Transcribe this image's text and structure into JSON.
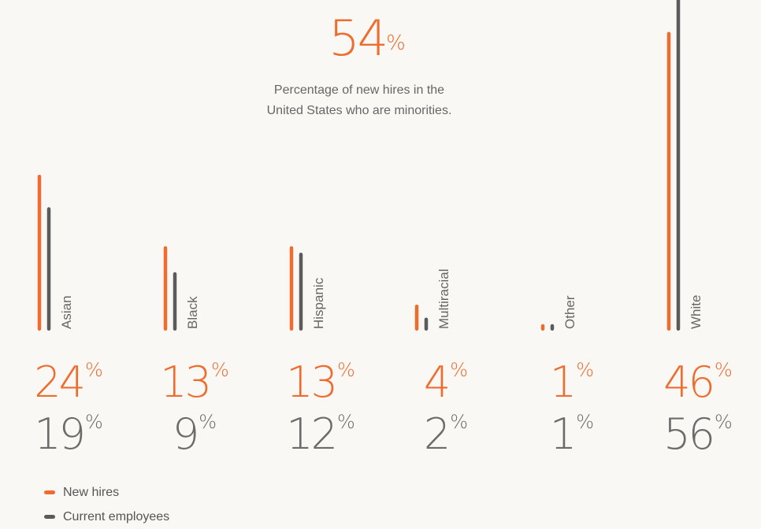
{
  "headline": {
    "value": "54",
    "unit": "%"
  },
  "subtitle": {
    "line1": "Percentage of new hires in the",
    "line2": "United States who are minorities."
  },
  "legend": [
    {
      "label": "New hires",
      "color": "#ef6c2f"
    },
    {
      "label": "Current employees",
      "color": "#5b5b5b"
    }
  ],
  "chart_data": {
    "type": "bar",
    "title": "",
    "categories": [
      "Asian",
      "Black",
      "Hispanic",
      "Multiracial",
      "Other",
      "White"
    ],
    "series": [
      {
        "name": "New hires",
        "color": "#ef6c2f",
        "values": [
          24,
          13,
          13,
          4,
          1,
          46
        ]
      },
      {
        "name": "Current employees",
        "color": "#5b5b5b",
        "values": [
          19,
          9,
          12,
          2,
          1,
          56
        ]
      }
    ],
    "value_labels": {
      "new_hires": [
        "24",
        "13",
        "13",
        "4",
        "1",
        "46"
      ],
      "current_employees": [
        "19",
        "9",
        "12",
        "2",
        "1",
        "56"
      ],
      "unit": "%"
    },
    "grid": false,
    "legend_position": "bottom-left"
  }
}
